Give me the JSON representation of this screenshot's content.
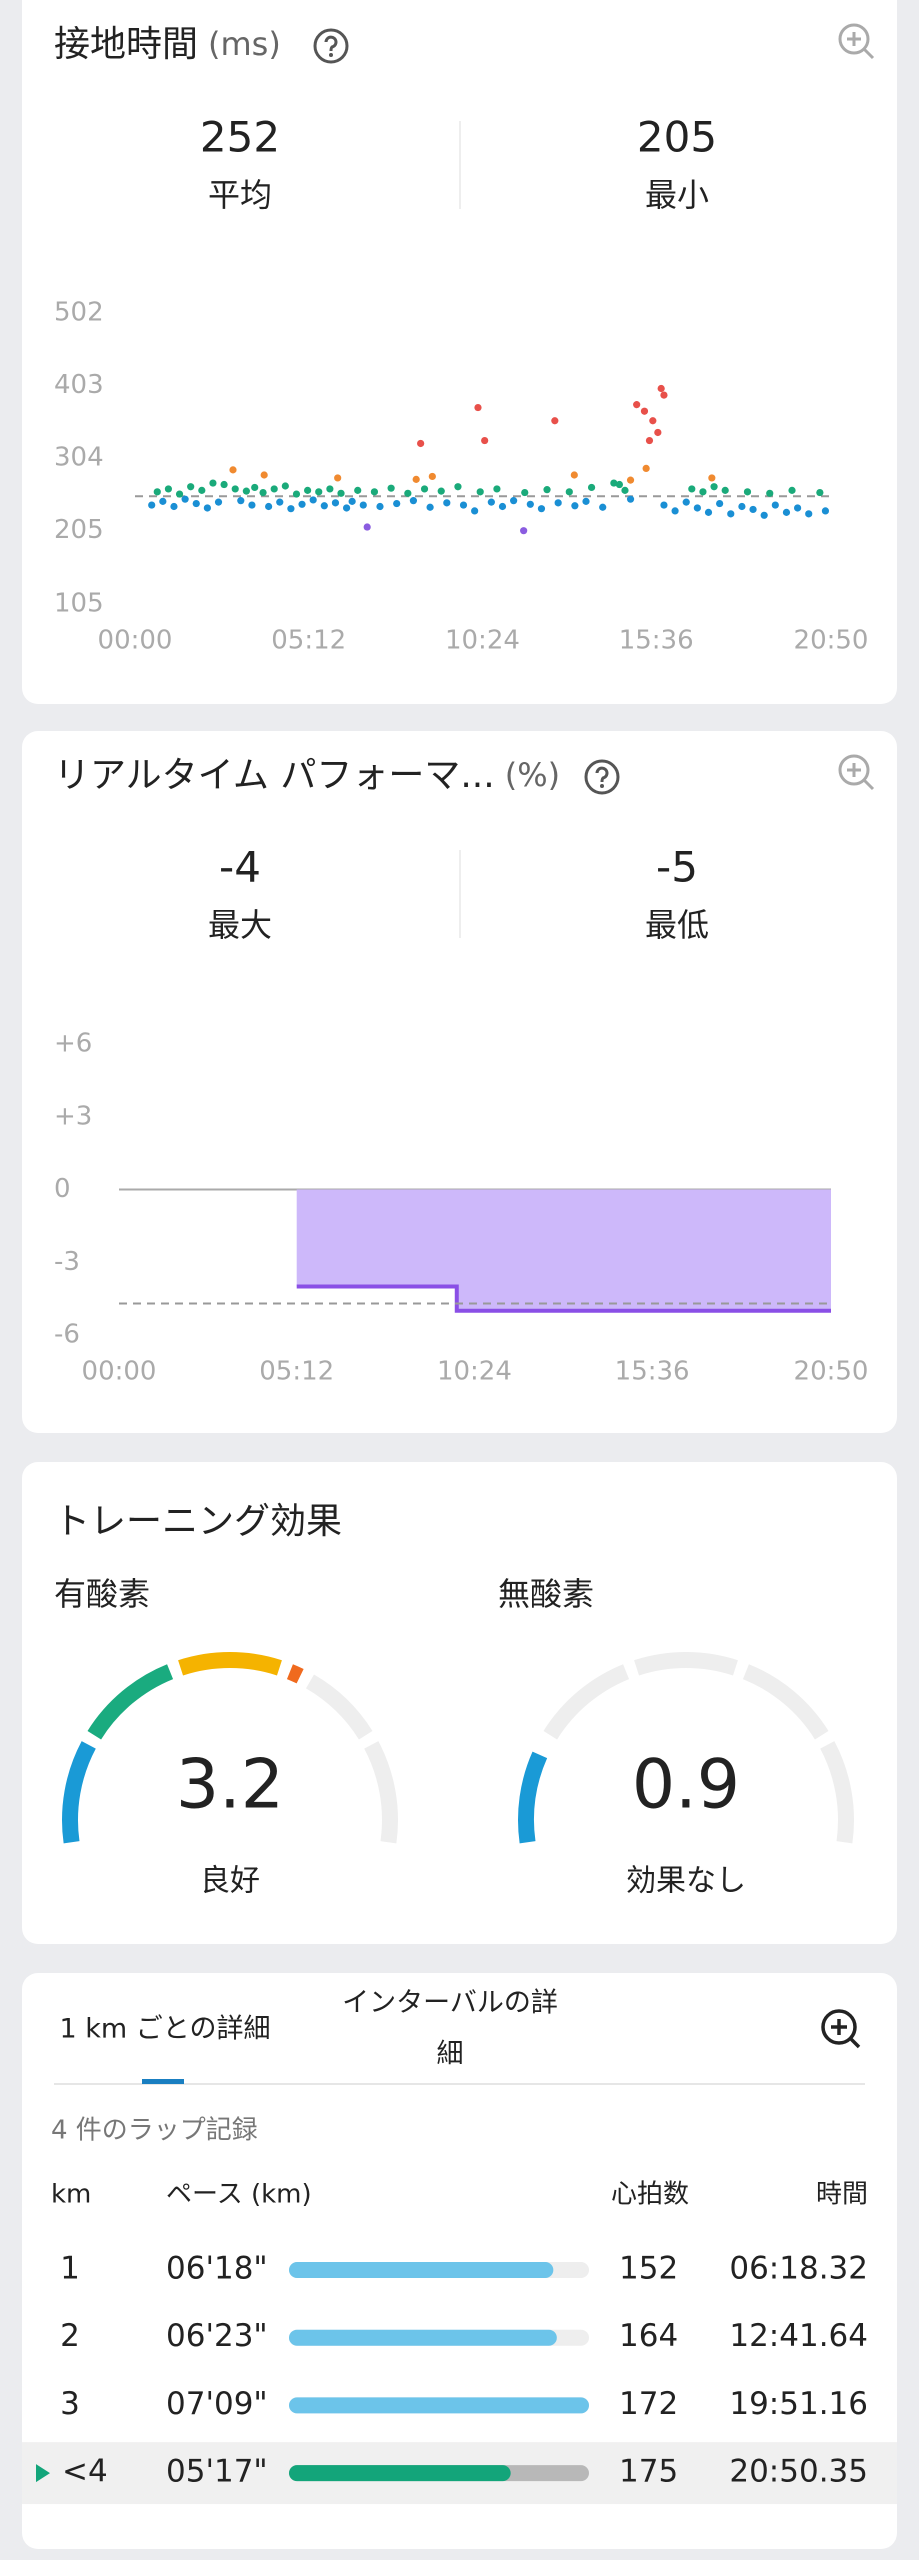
{
  "ground_contact": {
    "title": "接地時間",
    "unit": "(ms)",
    "stats": [
      {
        "value": 252,
        "label": "平均"
      },
      {
        "value": 205,
        "label": "最小"
      }
    ],
    "chart_data": {
      "type": "scatter",
      "series": [
        {
          "color": "#1a8fd4",
          "x": [
            30,
            50,
            70,
            90,
            110,
            130,
            150,
            190,
            210,
            240,
            260,
            280,
            300,
            320,
            340,
            360,
            380,
            390,
            410,
            440,
            470,
            500,
            530,
            560,
            590,
            610,
            640,
            660,
            680,
            710,
            730,
            760,
            790,
            810,
            840,
            890,
            950,
            970,
            990,
            1010,
            1030,
            1050,
            1070,
            1090,
            1110,
            1130,
            1150,
            1170,
            1190,
            1210,
            1240
          ],
          "values": [
            240,
            245,
            238,
            248,
            242,
            236,
            244,
            246,
            240,
            238,
            244,
            235,
            241,
            247,
            239,
            243,
            236,
            245,
            240,
            238,
            242,
            246,
            237,
            243,
            240,
            232,
            244,
            238,
            246,
            241,
            235,
            243,
            239,
            245,
            237,
            248,
            240,
            232,
            244,
            236,
            230,
            242,
            228,
            238,
            234,
            226,
            240,
            230,
            236,
            228,
            232
          ]
        },
        {
          "color": "#1aaa7a",
          "x": [
            40,
            60,
            80,
            100,
            120,
            140,
            160,
            180,
            200,
            215,
            230,
            250,
            270,
            290,
            310,
            330,
            350,
            370,
            400,
            430,
            460,
            490,
            520,
            550,
            580,
            620,
            650,
            700,
            740,
            780,
            820,
            860,
            870,
            880,
            1000,
            1020,
            1040,
            1060,
            1100,
            1140,
            1180,
            1230
          ],
          "values": [
            258,
            262,
            255,
            265,
            260,
            270,
            268,
            262,
            259,
            264,
            257,
            262,
            266,
            255,
            260,
            258,
            262,
            256,
            260,
            258,
            263,
            256,
            262,
            259,
            265,
            258,
            262,
            257,
            261,
            258,
            264,
            270,
            268,
            260,
            262,
            258,
            265,
            260,
            258,
            256,
            260,
            257
          ]
        },
        {
          "color": "#f08a30",
          "x": [
            176,
            232,
            364,
            505,
            534,
            789,
            890,
            918,
            1036
          ],
          "values": [
            288,
            281,
            277,
            275,
            279,
            281,
            274,
            290,
            277
          ]
        },
        {
          "color": "#e8504a",
          "x": [
            513,
            616,
            628,
            754,
            901,
            915,
            924,
            930,
            939,
            945,
            950
          ],
          "values": [
            324,
            373,
            328,
            355,
            377,
            368,
            328,
            355,
            339,
            399,
            390
          ]
        },
        {
          "color": "#8a5ce0",
          "x": [
            417,
            698
          ],
          "values": [
            210,
            205
          ]
        }
      ],
      "xlim": [
        0,
        1250
      ],
      "xticks": [
        {
          "value": 0,
          "label": "00:00"
        },
        {
          "value": 312,
          "label": "05:12"
        },
        {
          "value": 624,
          "label": "10:24"
        },
        {
          "value": 936,
          "label": "15:36"
        },
        {
          "value": 1250,
          "label": "20:50"
        }
      ],
      "ylim": [
        105,
        502
      ],
      "yticks": [
        105,
        205,
        304,
        403,
        502
      ]
    }
  },
  "performance": {
    "title": "リアルタイム パフォーマ...",
    "unit": "(%)",
    "stats": [
      {
        "value": -4,
        "label": "最大"
      },
      {
        "value": -5,
        "label": "最低"
      }
    ],
    "chart_data": {
      "type": "area",
      "series": [
        {
          "color": "#8a4fe6",
          "fill": "#cdb8fa",
          "x": [
            312,
            593,
            593,
            1250
          ],
          "values": [
            -4,
            -4,
            -5,
            -5
          ]
        }
      ],
      "reference_line": -4.7,
      "xlim": [
        0,
        1250
      ],
      "xticks": [
        {
          "value": 0,
          "label": "00:00"
        },
        {
          "value": 312,
          "label": "05:12"
        },
        {
          "value": 624,
          "label": "10:24"
        },
        {
          "value": 936,
          "label": "15:36"
        },
        {
          "value": 1250,
          "label": "20:50"
        }
      ],
      "ylim": [
        -6,
        6
      ],
      "yticks": [
        {
          "value": 6,
          "label": "+6"
        },
        {
          "value": 3,
          "label": "+3"
        },
        0,
        -3,
        -6
      ]
    }
  },
  "training_effect": {
    "title": "トレーニング効果",
    "range": [
      0,
      5
    ],
    "colors": [
      "#1a9ad6",
      "#1aab7f",
      "#f5b300",
      "#f06a1e"
    ],
    "track": "#eeeeee",
    "gauges": [
      {
        "label": "有酸素",
        "value": 3.2,
        "status": "良好",
        "status_color": "#e07a2a"
      },
      {
        "label": "無酸素",
        "value": 0.9,
        "status": "効果なし",
        "status_color": "#1d9bd1"
      }
    ]
  },
  "laps": {
    "tabs": [
      [
        "1 km ごとの詳細"
      ],
      [
        "インターバルの詳",
        "細"
      ]
    ],
    "count_label": "4 件のラップ記録",
    "columns": [
      "km",
      "ペース (km)",
      "心拍数",
      "時間"
    ],
    "rows": [
      {
        "km": 1,
        "pace": 378,
        "pace_label": "06'18\"",
        "heart_rate": 152,
        "time": "06:18.32"
      },
      {
        "km": 2,
        "pace": 383,
        "pace_label": "06'23\"",
        "heart_rate": 164,
        "time": "12:41.64"
      },
      {
        "km": 3,
        "pace": 429,
        "pace_label": "07'09\"",
        "heart_rate": 172,
        "time": "19:51.16"
      },
      {
        "km": "<4",
        "pace": 317,
        "pace_label": "05'17\"",
        "heart_rate": 175,
        "time": "20:50.35",
        "current": true
      }
    ]
  }
}
